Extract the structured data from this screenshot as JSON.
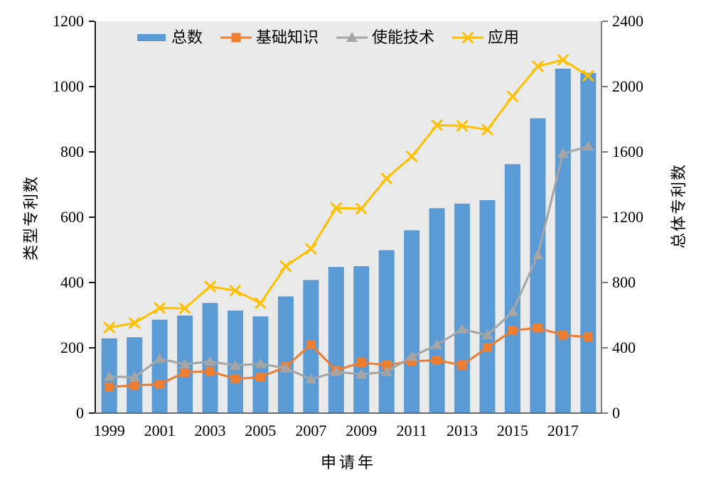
{
  "chart_data": {
    "type": "bar",
    "subtype": "bar-line-combo",
    "categories": [
      1999,
      2000,
      2001,
      2002,
      2003,
      2004,
      2005,
      2006,
      2007,
      2008,
      2009,
      2010,
      2011,
      2012,
      2013,
      2014,
      2015,
      2016,
      2017,
      2018
    ],
    "series": [
      {
        "name": "总数",
        "kind": "bar",
        "axis": "right",
        "color": "#5B9BD5",
        "values": [
          458,
          465,
          572,
          598,
          675,
          628,
          592,
          715,
          815,
          895,
          900,
          998,
          1120,
          1255,
          1283,
          1305,
          1525,
          1806,
          2110,
          2084
        ]
      },
      {
        "name": "基础知识",
        "kind": "line",
        "marker": "square",
        "axis": "left",
        "color": "#ED7D31",
        "values": [
          80,
          85,
          88,
          125,
          128,
          105,
          110,
          142,
          210,
          131,
          155,
          147,
          159,
          162,
          147,
          201,
          253,
          261,
          239,
          233
        ]
      },
      {
        "name": "使能技术",
        "kind": "line",
        "marker": "triangle",
        "axis": "left",
        "color": "#A5A5A5",
        "values": [
          112,
          110,
          166,
          150,
          158,
          146,
          151,
          138,
          104,
          126,
          119,
          126,
          173,
          209,
          257,
          239,
          310,
          484,
          795,
          817
        ]
      },
      {
        "name": "应用",
        "kind": "line",
        "marker": "x",
        "axis": "left",
        "color": "#FFC000",
        "values": [
          262,
          276,
          322,
          321,
          388,
          375,
          337,
          450,
          503,
          628,
          626,
          719,
          786,
          882,
          880,
          868,
          970,
          1062,
          1082,
          1033
        ]
      }
    ],
    "left_axis": {
      "label": "类型专利数",
      "min": 0,
      "max": 1200,
      "ticks": [
        0,
        200,
        400,
        600,
        800,
        1000,
        1200
      ]
    },
    "right_axis": {
      "label": "总体专利数",
      "min": 0,
      "max": 2400,
      "ticks": [
        0,
        400,
        800,
        1200,
        1600,
        2000,
        2400
      ]
    },
    "x_axis": {
      "label": "申请年",
      "tick_labels": [
        "1999",
        "2001",
        "2003",
        "2005",
        "2007",
        "2009",
        "2011",
        "2013",
        "2015",
        "2017"
      ]
    },
    "legend_position": "top",
    "grid": false,
    "plot_background": "#EAEAEA",
    "title": ""
  }
}
